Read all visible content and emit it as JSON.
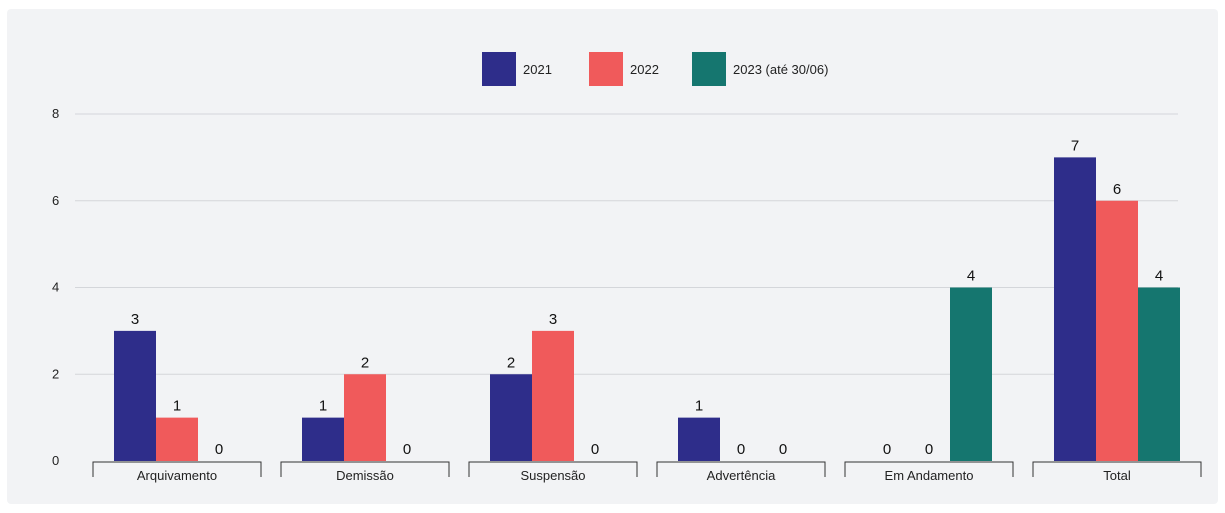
{
  "chart_data": {
    "type": "bar",
    "categories": [
      "Arquivamento",
      "Demissão",
      "Suspensão",
      "Advertência",
      "Em Andamento",
      "Total"
    ],
    "series": [
      {
        "name": "2021",
        "color": "#2e2d8a",
        "values": [
          3,
          1,
          2,
          1,
          0,
          7
        ]
      },
      {
        "name": "2022",
        "color": "#f05a5b",
        "values": [
          1,
          2,
          3,
          0,
          0,
          6
        ]
      },
      {
        "name": "2023 (até 30/06)",
        "color": "#15766f",
        "values": [
          0,
          0,
          0,
          0,
          4,
          4
        ]
      }
    ],
    "yticks": [
      0,
      2,
      4,
      6,
      8
    ],
    "ylim": [
      0,
      8
    ],
    "grid": true,
    "legend_position": "top-center",
    "title": "",
    "xlabel": "",
    "ylabel": ""
  }
}
